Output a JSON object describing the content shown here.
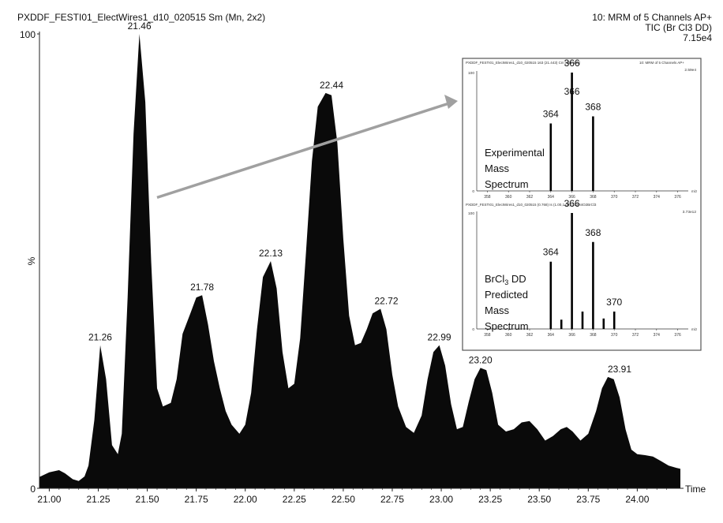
{
  "header": {
    "file_title": "PXDDF_FESTI01_ElectWires1_d10_020515 Sm (Mn, 2x2)",
    "scan_desc": "10: MRM of 5 Channels AP+",
    "trace_desc": "TIC (Br Cl3 DD)",
    "intensity": "7.15e4"
  },
  "chart_data": [
    {
      "type": "area",
      "name": "chromatogram",
      "xlabel": "Time",
      "ylabel": "%",
      "xlim": [
        20.95,
        24.22
      ],
      "ylim": [
        0,
        100
      ],
      "x_ticks": [
        "21.00",
        "21.25",
        "21.50",
        "21.75",
        "22.00",
        "22.25",
        "22.50",
        "22.75",
        "23.00",
        "23.25",
        "23.50",
        "23.75",
        "24.00"
      ],
      "y_ticks": [
        "0",
        "100"
      ],
      "fill_color": "#0a0a0a",
      "grid": false,
      "x": [
        20.95,
        21.0,
        21.05,
        21.08,
        21.12,
        21.15,
        21.18,
        21.2,
        21.23,
        21.26,
        21.29,
        21.32,
        21.35,
        21.37,
        21.4,
        21.43,
        21.46,
        21.49,
        21.52,
        21.55,
        21.58,
        21.62,
        21.65,
        21.68,
        21.72,
        21.75,
        21.78,
        21.81,
        21.84,
        21.87,
        21.9,
        21.93,
        21.97,
        22.0,
        22.03,
        22.06,
        22.09,
        22.13,
        22.16,
        22.19,
        22.22,
        22.25,
        22.28,
        22.31,
        22.34,
        22.37,
        22.41,
        22.44,
        22.47,
        22.5,
        22.53,
        22.56,
        22.59,
        22.62,
        22.65,
        22.69,
        22.72,
        22.75,
        22.78,
        22.82,
        22.86,
        22.9,
        22.93,
        22.96,
        22.99,
        23.02,
        23.05,
        23.08,
        23.11,
        23.14,
        23.17,
        23.2,
        23.23,
        23.26,
        23.29,
        23.33,
        23.37,
        23.41,
        23.45,
        23.49,
        23.53,
        23.57,
        23.61,
        23.64,
        23.67,
        23.71,
        23.75,
        23.79,
        23.82,
        23.85,
        23.88,
        23.91,
        23.94,
        23.97,
        24.0,
        24.04,
        24.08,
        24.12,
        24.16,
        24.2,
        24.22
      ],
      "y": [
        2.5,
        3.5,
        4.0,
        3.3,
        2.0,
        1.6,
        2.6,
        5.0,
        15.0,
        31.5,
        24.0,
        9.5,
        7.5,
        12.0,
        42.0,
        78.0,
        100,
        85.0,
        50.0,
        22.0,
        18.0,
        18.8,
        24.0,
        34.0,
        38.5,
        42.0,
        42.5,
        36.0,
        28.0,
        22.0,
        17.0,
        14.0,
        12.0,
        14.0,
        21.0,
        35.0,
        46.5,
        50.0,
        44.0,
        30.0,
        22.0,
        23.0,
        33.0,
        52.0,
        72.0,
        84.0,
        87.0,
        86.5,
        76.0,
        55.0,
        38.0,
        31.5,
        32.0,
        35.0,
        38.5,
        39.5,
        35.0,
        25.0,
        18.0,
        13.5,
        12.2,
        16.0,
        24.0,
        30.0,
        31.5,
        27.0,
        18.5,
        13.0,
        13.5,
        19.0,
        24.0,
        26.5,
        26.0,
        21.0,
        14.0,
        12.5,
        13.0,
        14.5,
        14.8,
        13.0,
        10.5,
        11.5,
        13.0,
        13.5,
        12.5,
        10.5,
        12.0,
        17.0,
        22.0,
        24.5,
        24.0,
        20.0,
        13.0,
        8.5,
        7.5,
        7.3,
        7.0,
        6.0,
        5.0,
        4.5,
        4.3
      ],
      "peak_labels": [
        {
          "x": 21.26,
          "y": 31.5,
          "text": "21.26"
        },
        {
          "x": 21.46,
          "y": 100,
          "text": "21.46"
        },
        {
          "x": 21.78,
          "y": 42.5,
          "text": "21.78"
        },
        {
          "x": 22.13,
          "y": 50.0,
          "text": "22.13"
        },
        {
          "x": 22.44,
          "y": 87.0,
          "text": "22.44"
        },
        {
          "x": 22.72,
          "y": 39.5,
          "text": "22.72"
        },
        {
          "x": 22.99,
          "y": 31.5,
          "text": "22.99"
        },
        {
          "x": 23.2,
          "y": 26.5,
          "text": "23.20"
        },
        {
          "x": 23.91,
          "y": 24.5,
          "text": "23.91"
        }
      ],
      "arrow": {
        "from": [
          21.55,
          64
        ],
        "to": "inset",
        "color": "#a0a0a0"
      }
    },
    {
      "type": "bar",
      "name": "experimental-spectrum",
      "header": "PXDDF_FESTI01_ElectWires1_d10_020515 163 (21.443) Cm (161:169)",
      "header_right": "10: MRM of 5 Channels AP+",
      "header_intensity": "2.59e4",
      "annotation": [
        "Experimental",
        "Mass",
        "Spectrum"
      ],
      "xlabel": "m/z",
      "x_ticks": [
        "358",
        "360",
        "362",
        "364",
        "366",
        "368",
        "370",
        "372",
        "374",
        "376"
      ],
      "xlim": [
        357,
        377
      ],
      "ylim": [
        0,
        100
      ],
      "y_ticks": [
        "0",
        "100"
      ],
      "bars": [
        {
          "x": 364,
          "y": 57,
          "label": "364"
        },
        {
          "x": 366,
          "y": 100,
          "label": "366"
        },
        {
          "x": 366,
          "y": 0,
          "label": "366",
          "label_y": 76
        },
        {
          "x": 368,
          "y": 63,
          "label": "368"
        }
      ]
    },
    {
      "type": "bar",
      "name": "predicted-spectrum",
      "header": "PXDDF_FESTI01_ElectWires1_d10_020515 (0.768) Is (1.00,1.00) C12H4O2BrCl3",
      "header_intensity": "3.73e12",
      "annotation": [
        "BrCl",
        "3",
        " DD",
        "Predicted",
        "Mass",
        "Spectrum"
      ],
      "xlabel": "m/z",
      "x_ticks": [
        "358",
        "360",
        "362",
        "364",
        "366",
        "368",
        "370",
        "372",
        "374",
        "376"
      ],
      "xlim": [
        357,
        377
      ],
      "ylim": [
        0,
        100
      ],
      "y_ticks": [
        "0",
        "100"
      ],
      "bars": [
        {
          "x": 364,
          "y": 58,
          "label": "364"
        },
        {
          "x": 365,
          "y": 8,
          "label": ""
        },
        {
          "x": 366,
          "y": 100,
          "label": "366"
        },
        {
          "x": 367,
          "y": 15,
          "label": ""
        },
        {
          "x": 368,
          "y": 75,
          "label": "368"
        },
        {
          "x": 369,
          "y": 9,
          "label": ""
        },
        {
          "x": 370,
          "y": 15,
          "label": "370"
        }
      ]
    }
  ]
}
